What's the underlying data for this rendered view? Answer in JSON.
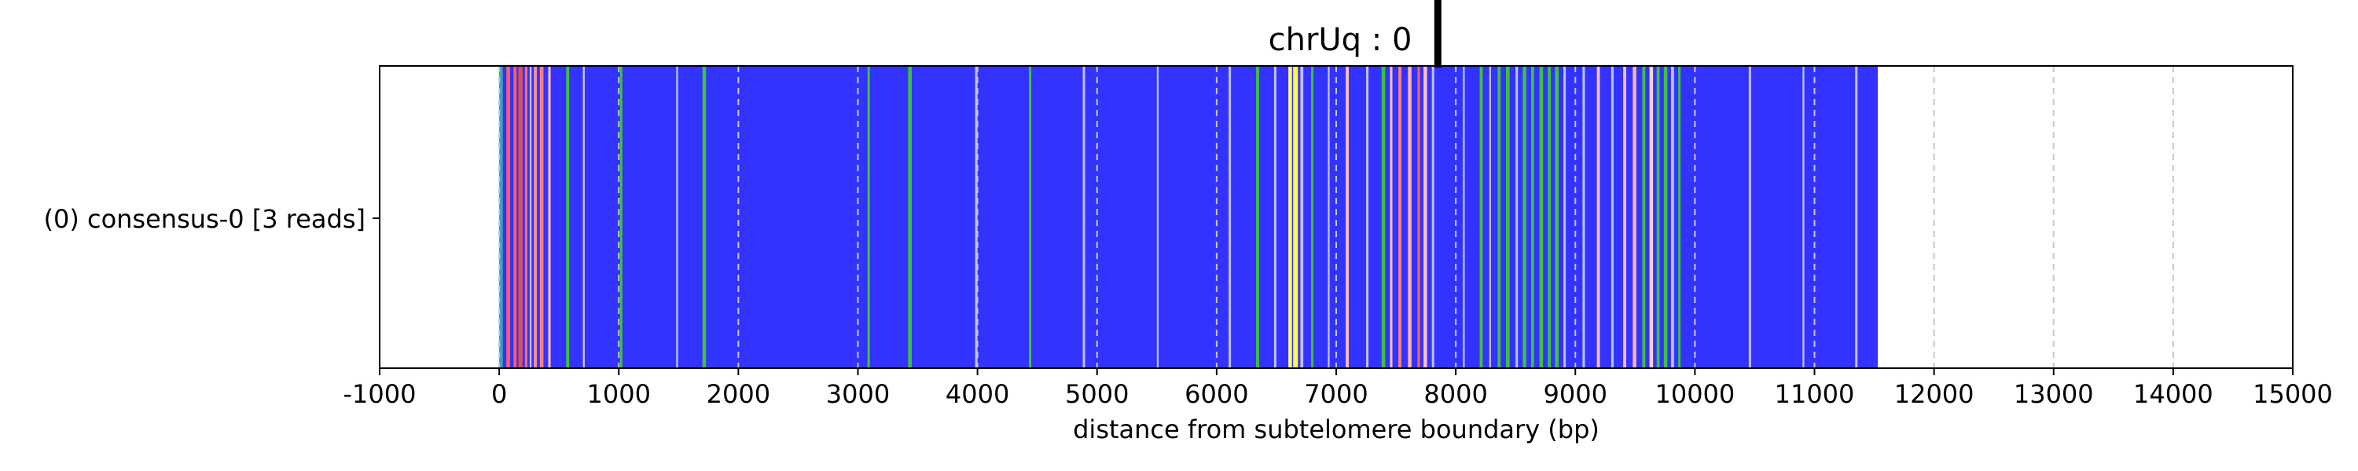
{
  "chart_data": {
    "type": "bar",
    "title": "chrUq : 0",
    "xlabel": "distance from subtelomere boundary (bp)",
    "ylabel": "",
    "categories": [
      "(0) consensus-0 [3 reads]"
    ],
    "xlim": [
      -1000,
      15000
    ],
    "xticks": [
      -1000,
      0,
      1000,
      2000,
      3000,
      4000,
      5000,
      6000,
      7000,
      8000,
      9000,
      10000,
      11000,
      12000,
      13000,
      14000,
      15000
    ],
    "grid": "x dashed",
    "boundary_marker_x": 7850,
    "read_span": [
      0,
      11530
    ],
    "base_color": "#3333ff",
    "segments": [
      {
        "x": 0,
        "w": 30,
        "color": "#40a0c0"
      },
      {
        "x": 60,
        "w": 30,
        "color": "#ff6060"
      },
      {
        "x": 120,
        "w": 25,
        "color": "#ff6060"
      },
      {
        "x": 160,
        "w": 35,
        "color": "#e05050"
      },
      {
        "x": 215,
        "w": 20,
        "color": "#ff7070"
      },
      {
        "x": 255,
        "w": 15,
        "color": "#c0c0ff"
      },
      {
        "x": 290,
        "w": 25,
        "color": "#ff9090"
      },
      {
        "x": 340,
        "w": 30,
        "color": "#ff8080"
      },
      {
        "x": 410,
        "w": 20,
        "color": "#ffc0c0"
      },
      {
        "x": 560,
        "w": 25,
        "color": "#40c040"
      },
      {
        "x": 700,
        "w": 15,
        "color": "#d0d0ff"
      },
      {
        "x": 1010,
        "w": 20,
        "color": "#40c040"
      },
      {
        "x": 1480,
        "w": 15,
        "color": "#c0c0ff"
      },
      {
        "x": 1700,
        "w": 30,
        "color": "#40c040"
      },
      {
        "x": 3080,
        "w": 20,
        "color": "#40c040"
      },
      {
        "x": 3420,
        "w": 30,
        "color": "#40c040"
      },
      {
        "x": 3980,
        "w": 20,
        "color": "#c0c0ff"
      },
      {
        "x": 4430,
        "w": 20,
        "color": "#40c040"
      },
      {
        "x": 4880,
        "w": 20,
        "color": "#c0c0ff"
      },
      {
        "x": 5500,
        "w": 15,
        "color": "#c0c0ff"
      },
      {
        "x": 6100,
        "w": 20,
        "color": "#c0c0ff"
      },
      {
        "x": 6330,
        "w": 25,
        "color": "#40c040"
      },
      {
        "x": 6480,
        "w": 20,
        "color": "#c0c0ff"
      },
      {
        "x": 6600,
        "w": 30,
        "color": "#ffff60"
      },
      {
        "x": 6640,
        "w": 40,
        "color": "#ffff40"
      },
      {
        "x": 6700,
        "w": 25,
        "color": "#c0c0ff"
      },
      {
        "x": 6790,
        "w": 20,
        "color": "#40c040"
      },
      {
        "x": 6930,
        "w": 15,
        "color": "#c0c0ff"
      },
      {
        "x": 7080,
        "w": 25,
        "color": "#ffc0c0"
      },
      {
        "x": 7250,
        "w": 20,
        "color": "#c0c0ff"
      },
      {
        "x": 7380,
        "w": 30,
        "color": "#40c040"
      },
      {
        "x": 7450,
        "w": 20,
        "color": "#ffc0c0"
      },
      {
        "x": 7520,
        "w": 25,
        "color": "#ff8080"
      },
      {
        "x": 7600,
        "w": 30,
        "color": "#ffb0b0"
      },
      {
        "x": 7680,
        "w": 20,
        "color": "#ff6060"
      },
      {
        "x": 7730,
        "w": 30,
        "color": "#ffc0c0"
      },
      {
        "x": 7800,
        "w": 20,
        "color": "#c0c0ff"
      },
      {
        "x": 8060,
        "w": 15,
        "color": "#c0c0ff"
      },
      {
        "x": 8200,
        "w": 25,
        "color": "#40c040"
      },
      {
        "x": 8280,
        "w": 15,
        "color": "#c0c0ff"
      },
      {
        "x": 8350,
        "w": 25,
        "color": "#40c040"
      },
      {
        "x": 8420,
        "w": 30,
        "color": "#40c040"
      },
      {
        "x": 8500,
        "w": 20,
        "color": "#c0c0ff"
      },
      {
        "x": 8560,
        "w": 30,
        "color": "#40c040"
      },
      {
        "x": 8630,
        "w": 25,
        "color": "#40c040"
      },
      {
        "x": 8700,
        "w": 30,
        "color": "#40c040"
      },
      {
        "x": 8770,
        "w": 25,
        "color": "#40c040"
      },
      {
        "x": 8830,
        "w": 30,
        "color": "#40c040"
      },
      {
        "x": 8900,
        "w": 20,
        "color": "#c0c0ff"
      },
      {
        "x": 9060,
        "w": 20,
        "color": "#c0c0ff"
      },
      {
        "x": 9180,
        "w": 25,
        "color": "#ffc0c0"
      },
      {
        "x": 9300,
        "w": 20,
        "color": "#c0c0ff"
      },
      {
        "x": 9400,
        "w": 25,
        "color": "#ffc0c0"
      },
      {
        "x": 9480,
        "w": 30,
        "color": "#ffb0b0"
      },
      {
        "x": 9560,
        "w": 25,
        "color": "#40c040"
      },
      {
        "x": 9620,
        "w": 30,
        "color": "#ffd0d0"
      },
      {
        "x": 9680,
        "w": 25,
        "color": "#40c040"
      },
      {
        "x": 9740,
        "w": 30,
        "color": "#40c040"
      },
      {
        "x": 9800,
        "w": 25,
        "color": "#c0c0ff"
      },
      {
        "x": 9860,
        "w": 20,
        "color": "#40c040"
      },
      {
        "x": 10450,
        "w": 20,
        "color": "#c0c0ff"
      },
      {
        "x": 10900,
        "w": 15,
        "color": "#c0c0ff"
      },
      {
        "x": 11340,
        "w": 20,
        "color": "#c0c0ff"
      }
    ]
  }
}
